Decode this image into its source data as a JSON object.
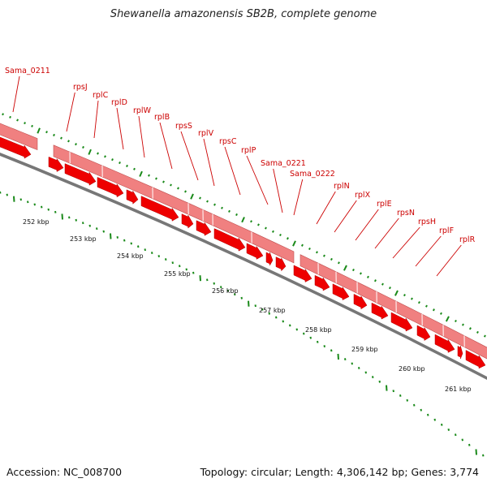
{
  "title": "Shewanella amazonensis SB2B, complete genome",
  "footer": {
    "accession": "Accession: NC_008700",
    "summary": "Topology: circular; Length: 4,306,142 bp; Genes: 3,774"
  },
  "colors": {
    "gene_label": "#cc0000",
    "cds_fill": "#ee0000",
    "gene_band": "#f08080",
    "backbone": "#777777",
    "ticks": "#1a8a1a"
  },
  "kbp_ticks": [
    "252 kbp",
    "253 kbp",
    "254 kbp",
    "255 kbp",
    "256 kbp",
    "257 kbp",
    "258 kbp",
    "259 kbp",
    "260 kbp",
    "261 kbp"
  ],
  "genes": [
    "Sama_0211",
    "rpsJ",
    "rplC",
    "rplD",
    "rplW",
    "rplB",
    "rpsS",
    "rplV",
    "rpsC",
    "rplP",
    "Sama_0221",
    "Sama_0222",
    "rplN",
    "rplX",
    "rplE",
    "rpsN",
    "rpsH",
    "rplF",
    "rplR"
  ]
}
